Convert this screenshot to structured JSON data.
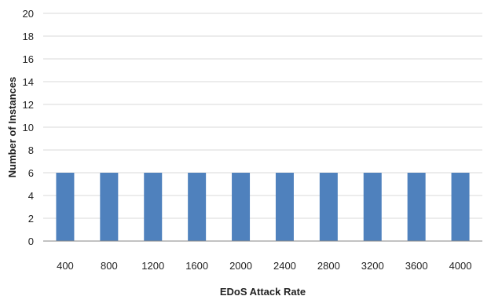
{
  "chart_data": {
    "type": "bar",
    "title": "",
    "xlabel": "EDoS Attack Rate",
    "ylabel": "Number of Instances",
    "categories": [
      "400",
      "800",
      "1200",
      "1600",
      "2000",
      "2400",
      "2800",
      "3200",
      "3600",
      "4000"
    ],
    "series": [
      {
        "values": [
          6,
          6,
          6,
          6,
          6,
          6,
          6,
          6,
          6,
          6
        ],
        "color": "#4f81bd"
      }
    ],
    "ylim": [
      0,
      20
    ],
    "yticks": [
      "0",
      "2",
      "4",
      "6",
      "8",
      "10",
      "12",
      "14",
      "16",
      "18",
      "20"
    ],
    "grid": "horizontal",
    "legend": "none",
    "gridline_color": "#d9d9d9",
    "axis_color": "#868686"
  }
}
